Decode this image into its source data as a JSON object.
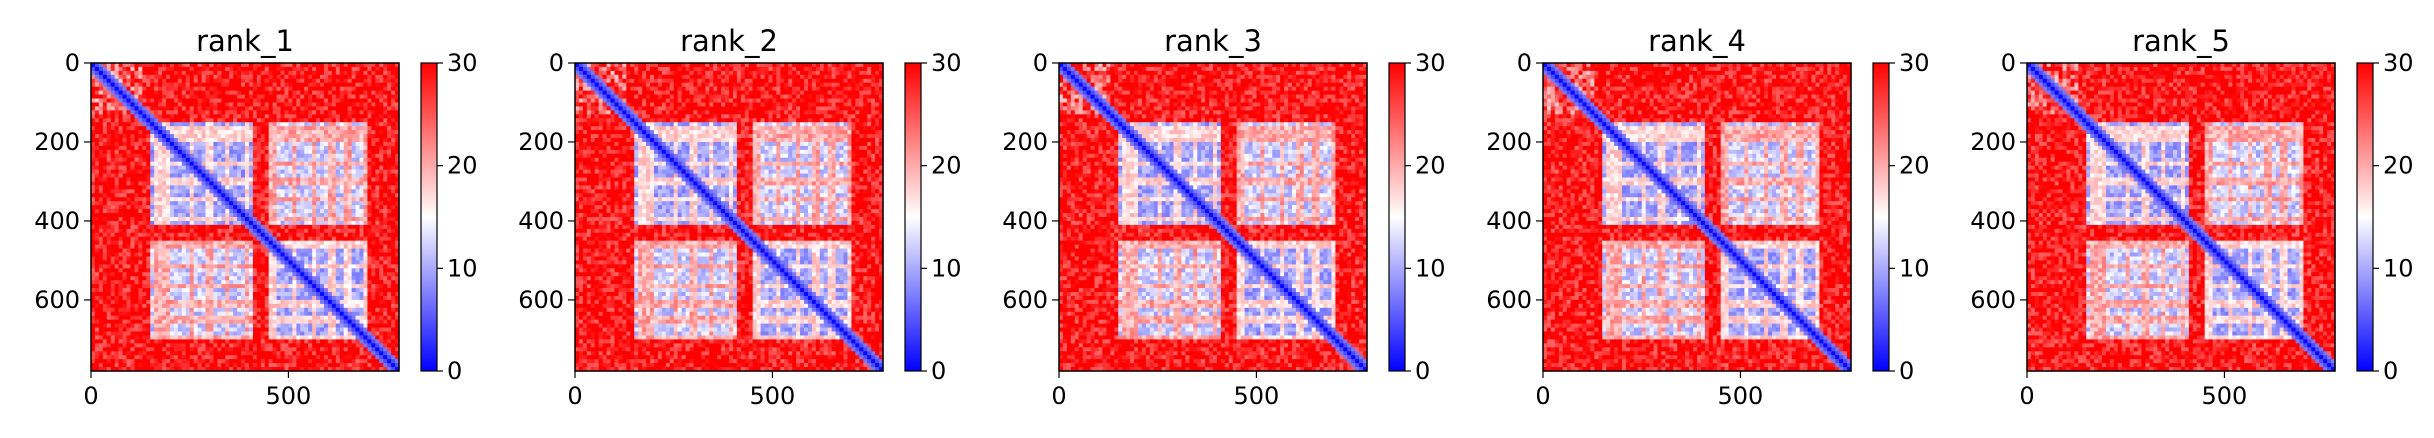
{
  "chart_data": [
    {
      "type": "heatmap",
      "title": "rank_1",
      "xticks": [
        0,
        500
      ],
      "yticks": [
        0,
        200,
        400,
        600
      ],
      "xlim": [
        0,
        780
      ],
      "ylim": [
        780,
        0
      ],
      "colorbar": {
        "ticks": [
          0,
          10,
          20,
          30
        ],
        "range": [
          0,
          30
        ],
        "colormap": "bwr"
      }
    },
    {
      "type": "heatmap",
      "title": "rank_2",
      "xticks": [
        0,
        500
      ],
      "yticks": [
        0,
        200,
        400,
        600
      ],
      "xlim": [
        0,
        780
      ],
      "ylim": [
        780,
        0
      ],
      "colorbar": {
        "ticks": [
          0,
          10,
          20,
          30
        ],
        "range": [
          0,
          30
        ],
        "colormap": "bwr"
      }
    },
    {
      "type": "heatmap",
      "title": "rank_3",
      "xticks": [
        0,
        500
      ],
      "yticks": [
        0,
        200,
        400,
        600
      ],
      "xlim": [
        0,
        780
      ],
      "ylim": [
        780,
        0
      ],
      "colorbar": {
        "ticks": [
          0,
          10,
          20,
          30
        ],
        "range": [
          0,
          30
        ],
        "colormap": "bwr"
      }
    },
    {
      "type": "heatmap",
      "title": "rank_4",
      "xticks": [
        0,
        500
      ],
      "yticks": [
        0,
        200,
        400,
        600
      ],
      "xlim": [
        0,
        780
      ],
      "ylim": [
        780,
        0
      ],
      "colorbar": {
        "ticks": [
          0,
          10,
          20,
          30
        ],
        "range": [
          0,
          30
        ],
        "colormap": "bwr"
      }
    },
    {
      "type": "heatmap",
      "title": "rank_5",
      "xticks": [
        0,
        500
      ],
      "yticks": [
        0,
        200,
        400,
        600
      ],
      "xlim": [
        0,
        780
      ],
      "ylim": [
        780,
        0
      ],
      "colorbar": {
        "ticks": [
          0,
          10,
          20,
          30
        ],
        "range": [
          0,
          30
        ],
        "colormap": "bwr"
      }
    }
  ],
  "colors": {
    "low": "#0000ff",
    "mid": "#ffffff",
    "high": "#ff0000"
  }
}
